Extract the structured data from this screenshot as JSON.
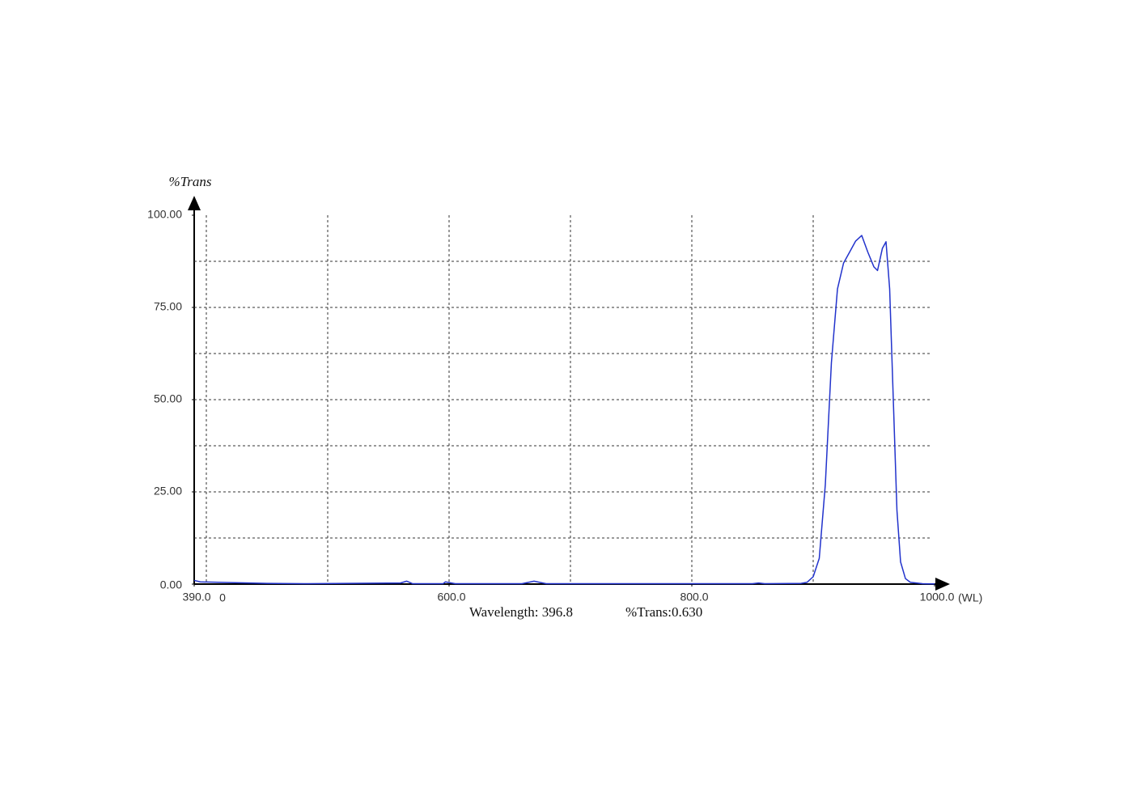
{
  "chart_data": {
    "type": "line",
    "y_label": "%Trans",
    "x_label": "(WL)",
    "annotations": [
      "0",
      "Wavelength: 396.8",
      "%Trans:0.630"
    ],
    "xlim": [
      390,
      1000
    ],
    "ylim": [
      0,
      100
    ],
    "xticks": [
      {
        "value": 390,
        "label": "390.0"
      },
      {
        "value": 600,
        "label": "600.0"
      },
      {
        "value": 800,
        "label": "800.0"
      },
      {
        "value": 1000,
        "label": "1000.0"
      }
    ],
    "yticks": [
      {
        "value": 0,
        "label": "0.00"
      },
      {
        "value": 25,
        "label": "25.00"
      },
      {
        "value": 50,
        "label": "50.00"
      },
      {
        "value": 75,
        "label": "75.00"
      },
      {
        "value": 100,
        "label": "100.00"
      }
    ],
    "xgrid": [
      400,
      500,
      600,
      700,
      800,
      900
    ],
    "ygrid": [
      12.5,
      25,
      37.5,
      50,
      62.5,
      75,
      87.5
    ],
    "grid": true,
    "series": [
      {
        "color": "#2233cc",
        "x": [
          390,
          395,
          420,
          450,
          480,
          560,
          565,
          570,
          595,
          597,
          605,
          660,
          670,
          680,
          850,
          855,
          860,
          890,
          895,
          900,
          905,
          910,
          915,
          920,
          925,
          930,
          935,
          940,
          945,
          950,
          953,
          957,
          960,
          963,
          966,
          969,
          972,
          976,
          980,
          990,
          1000
        ],
        "values": [
          1,
          0.6,
          0.4,
          0.2,
          0.1,
          0.3,
          0.8,
          0.1,
          0.1,
          0.6,
          0.1,
          0.1,
          0.8,
          0.1,
          0.1,
          0.3,
          0.1,
          0.2,
          0.5,
          2,
          7,
          27,
          60,
          80,
          87,
          90,
          93,
          94.5,
          90,
          86,
          85,
          91,
          92.8,
          80,
          50,
          20,
          6,
          1.5,
          0.5,
          0.1,
          0.05
        ]
      }
    ]
  }
}
